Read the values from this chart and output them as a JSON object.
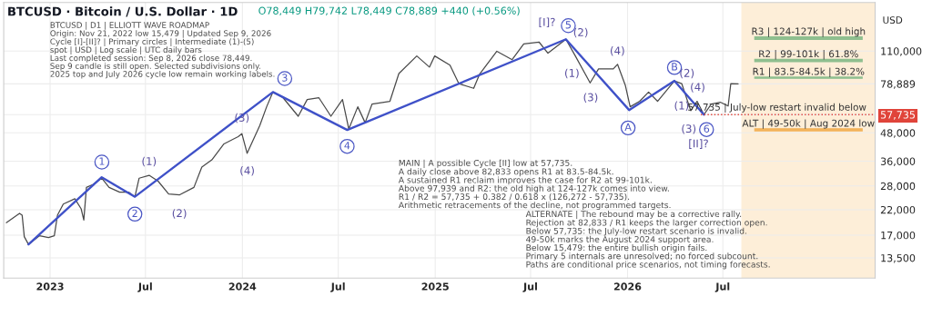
{
  "chart_data": {
    "type": "line",
    "title": "BTCUSD · Bitcoin / U.S. Dollar · 1D",
    "subtitle": "O78,449 H79,742 L78,449 C78,889 +440 (+0.56%)",
    "ylabel": "USD",
    "log": true,
    "grid": true,
    "xlim": [
      "2022-10-05",
      "2027-04-16"
    ],
    "xticks": [
      {
        "value": "2023-01-01",
        "label": "2023"
      },
      {
        "value": "2023-07-01",
        "label": "Jul"
      },
      {
        "value": "2024-01-01",
        "label": "2024"
      },
      {
        "value": "2024-07-01",
        "label": "Jul"
      },
      {
        "value": "2025-01-01",
        "label": "2025"
      },
      {
        "value": "2025-07-01",
        "label": "Jul"
      },
      {
        "value": "2026-01-01",
        "label": "2026"
      },
      {
        "value": "2026-07-01",
        "label": "Jul"
      }
    ],
    "ylim": [
      11000,
      180000
    ],
    "yticks": [
      {
        "value": 13500,
        "label": "13,500"
      },
      {
        "value": 17000,
        "label": "17,000"
      },
      {
        "value": 22000,
        "label": "22,000"
      },
      {
        "value": 28000,
        "label": "28,000"
      },
      {
        "value": 36000,
        "label": "36,000"
      },
      {
        "value": 48000,
        "label": "48,000"
      },
      {
        "value": 57735,
        "label": "57,735"
      },
      {
        "value": 78889,
        "label": "78,889"
      },
      {
        "value": 110000,
        "label": "110,000"
      }
    ],
    "series": [
      {
        "color": "#4a4a4a",
        "x": [
          "2022-10-10",
          "2022-11-04",
          "2022-11-09",
          "2022-11-13",
          "2022-11-21",
          "2022-12-12",
          "2022-12-29",
          "2023-01-09",
          "2023-01-15",
          "2023-01-26",
          "2023-02-17",
          "2023-03-01",
          "2023-03-06",
          "2023-03-11",
          "2023-03-23",
          "2023-04-09",
          "2023-04-23",
          "2023-05-13",
          "2023-05-30",
          "2023-06-11",
          "2023-06-19",
          "2023-07-08",
          "2023-07-25",
          "2023-08-14",
          "2023-09-04",
          "2023-10-01",
          "2023-10-16",
          "2023-11-04",
          "2023-11-27",
          "2023-12-24",
          "2023-12-31",
          "2024-01-10",
          "2024-02-03",
          "2024-02-16",
          "2024-02-28",
          "2024-03-18",
          "2024-04-16",
          "2024-05-03",
          "2024-05-25",
          "2024-06-17",
          "2024-07-09",
          "2024-07-21",
          "2024-08-07",
          "2024-08-21",
          "2024-09-03",
          "2024-10-07",
          "2024-10-24",
          "2024-11-27",
          "2024-12-21",
          "2024-12-31",
          "2025-01-29",
          "2025-02-15",
          "2025-03-15",
          "2025-03-26",
          "2025-04-28",
          "2025-05-27",
          "2025-06-18",
          "2025-07-17",
          "2025-08-03",
          "2025-09-06",
          "2025-09-23",
          "2025-10-22",
          "2025-11-07",
          "2025-12-05",
          "2025-12-13",
          "2025-12-28",
          "2026-01-06",
          "2026-01-24",
          "2026-02-10",
          "2026-02-27",
          "2026-03-31",
          "2026-04-14",
          "2026-05-01",
          "2026-05-13",
          "2026-05-26",
          "2026-06-09",
          "2026-06-26",
          "2026-07-11",
          "2026-07-16",
          "2026-07-30"
        ],
        "values": [
          19300,
          21200,
          20800,
          16750,
          15479,
          16900,
          16600,
          16900,
          20800,
          23300,
          24600,
          22200,
          19800,
          27600,
          28400,
          30300,
          27600,
          26300,
          26300,
          25100,
          30300,
          31200,
          29400,
          25800,
          25600,
          27600,
          33900,
          36500,
          42900,
          46200,
          47600,
          39000,
          51700,
          62500,
          72600,
          68600,
          56800,
          67300,
          68600,
          56800,
          67300,
          49900,
          62500,
          53200,
          64200,
          66100,
          87600,
          104700,
          93500,
          104700,
          95300,
          79000,
          75400,
          86800,
          109800,
          100800,
          118300,
          120600,
          107700,
          124000,
          105700,
          79700,
          91800,
          91800,
          96200,
          77500,
          62500,
          66100,
          72600,
          66100,
          81300,
          79000,
          60100,
          66100,
          57735,
          64200,
          65500,
          63000,
          79000,
          78889
        ]
      },
      {
        "color": "#3f51c8",
        "x": [
          "2022-11-21",
          "2023-04-09",
          "2023-06-11",
          "2024-02-28",
          "2024-07-18",
          "2025-09-06",
          "2026-01-04",
          "2026-03-31",
          "2026-05-26"
        ],
        "values": [
          15479,
          30600,
          25100,
          72600,
          49400,
          124000,
          60500,
          81300,
          57735
        ]
      }
    ],
    "bands": [
      {
        "axis": "x",
        "from": "2026-08-05",
        "to": "2027-04-16",
        "color": "#fdeed8"
      },
      {
        "axis": "y",
        "from": 124000,
        "to": 127000,
        "label": "R3 | 124-127k | old high",
        "color": "#8fbf8f"
      },
      {
        "axis": "y",
        "from": 99000,
        "to": 101000,
        "label": "R2 | 99-101k | 61.8%",
        "color": "#8fbf8f"
      },
      {
        "axis": "y",
        "from": 83500,
        "to": 84500,
        "label": "R1 | 83.5-84.5k | 38.2%",
        "color": "#8fbf8f"
      },
      {
        "axis": "y",
        "from": 49000,
        "to": 50000,
        "label": "ALT | 49-50k | Aug 2024 low",
        "color": "#f2b35a"
      }
    ],
    "ref_lines": [
      {
        "axis": "y",
        "value": 57735,
        "label": "57,735 | July-low restart invalid below",
        "color": "#e0443a",
        "line_style": "dotted"
      }
    ],
    "annotations": [
      "BTCUSD | D1 | ELLIOTT WAVE ROADMAP\nOrigin: Nov 21, 2022 low 15,479 | Updated Sep 9, 2026\nCycle [I]-[II]? | Primary circles | Intermediate (1)-(5)\nspot | USD | Log scale | UTC daily bars\nLast completed session: Sep 8, 2026 close 78,449.\nSep 9 candle is still open. Selected subdivisions only.\n2025 top and July 2026 cycle low remain working labels.",
      "MAIN | A possible Cycle [II] low at 57,735.\nA daily close above 82,833 opens R1 at 83.5-84.5k.\nA sustained R1 reclaim improves the case for R2 at 99-101k.\nAbove 97,939 and R2: the old high at 124-127k comes into view.\nR1 / R2 = 57,735 + 0.382 / 0.618 x (126,272 - 57,735).\nArithmetic retracements of the decline, not programmed targets.",
      "ALTERNATE | The rebound may be a corrective rally.\nRejection at 82,833 / R1 keeps the larger correction open.\nBelow 57,735: the July-low restart scenario is invalid.\n49-50k marks the August 2024 support area.\nBelow 15,479: the entire bullish origin fails.\nPrimary 5 internals are unresolved; no forced subcount.\nPaths are conditional price scenarios, not timing forecasts.",
      "1",
      "2",
      "(1)",
      "(2)",
      "(3)",
      "(4)",
      "3",
      "4",
      "[I]?",
      "5",
      "(2)",
      "(1)",
      "(3)",
      "(4)",
      "A",
      "B",
      "(2)",
      "(4)",
      "(1)",
      "(3)",
      "6",
      "[II]?"
    ]
  }
}
